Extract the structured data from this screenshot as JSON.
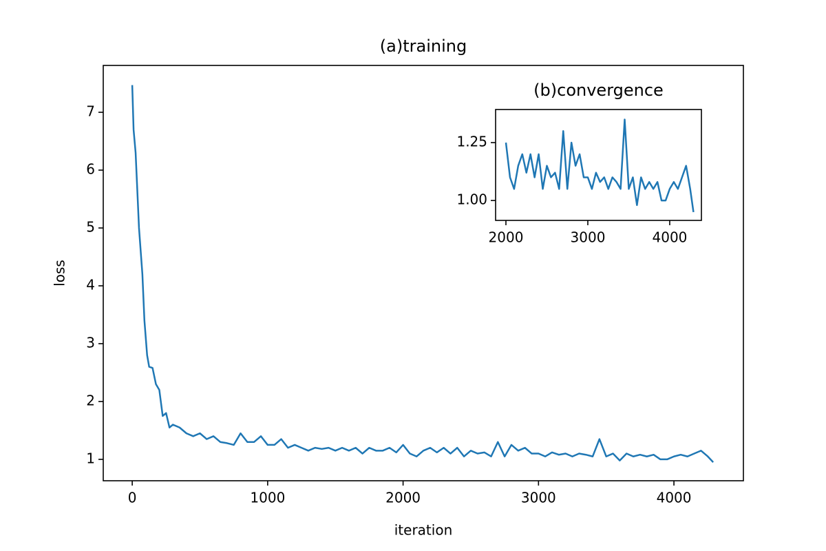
{
  "chart_data": [
    {
      "type": "line",
      "title": "(a)training",
      "x_label": "iteration",
      "y_label": "loss",
      "color": "#1f77b4",
      "x": [
        0,
        10,
        25,
        50,
        75,
        90,
        110,
        125,
        150,
        175,
        200,
        225,
        250,
        275,
        300,
        350,
        400,
        450,
        500,
        550,
        600,
        650,
        700,
        750,
        800,
        850,
        900,
        950,
        1000,
        1050,
        1100,
        1150,
        1200,
        1250,
        1300,
        1350,
        1400,
        1450,
        1500,
        1550,
        1600,
        1650,
        1700,
        1750,
        1800,
        1850,
        1900,
        1950,
        2000,
        2050,
        2100,
        2150,
        2200,
        2250,
        2300,
        2350,
        2400,
        2450,
        2500,
        2550,
        2600,
        2650,
        2700,
        2750,
        2800,
        2850,
        2900,
        2950,
        3000,
        3050,
        3100,
        3150,
        3200,
        3250,
        3300,
        3350,
        3400,
        3450,
        3500,
        3550,
        3600,
        3650,
        3700,
        3750,
        3800,
        3850,
        3900,
        3950,
        4000,
        4050,
        4100,
        4150,
        4200,
        4250,
        4290
      ],
      "values": [
        7.47,
        6.7,
        6.3,
        5.0,
        4.2,
        3.4,
        2.8,
        2.6,
        2.58,
        2.3,
        2.2,
        1.75,
        1.8,
        1.55,
        1.6,
        1.55,
        1.45,
        1.4,
        1.45,
        1.35,
        1.4,
        1.3,
        1.28,
        1.25,
        1.45,
        1.3,
        1.3,
        1.4,
        1.25,
        1.25,
        1.35,
        1.2,
        1.25,
        1.2,
        1.15,
        1.2,
        1.18,
        1.2,
        1.15,
        1.2,
        1.15,
        1.2,
        1.1,
        1.2,
        1.15,
        1.15,
        1.2,
        1.12,
        1.25,
        1.1,
        1.05,
        1.15,
        1.2,
        1.12,
        1.2,
        1.1,
        1.2,
        1.05,
        1.15,
        1.1,
        1.12,
        1.05,
        1.3,
        1.05,
        1.25,
        1.15,
        1.2,
        1.1,
        1.1,
        1.05,
        1.12,
        1.08,
        1.1,
        1.05,
        1.1,
        1.08,
        1.05,
        1.35,
        1.05,
        1.1,
        0.98,
        1.1,
        1.05,
        1.08,
        1.05,
        1.08,
        1.0,
        1.0,
        1.05,
        1.08,
        1.05,
        1.1,
        1.15,
        1.05,
        0.95
      ],
      "xlim": [
        -214,
        4513
      ],
      "ylim": [
        0.63,
        7.81
      ],
      "xticks": [
        0,
        1000,
        2000,
        3000,
        4000
      ],
      "yticks": [
        1,
        2,
        3,
        4,
        5,
        6,
        7
      ]
    },
    {
      "type": "line",
      "title": "(b)convergence",
      "color": "#1f77b4",
      "x": [
        2000,
        2050,
        2100,
        2150,
        2200,
        2250,
        2300,
        2350,
        2400,
        2450,
        2500,
        2550,
        2600,
        2650,
        2700,
        2750,
        2800,
        2850,
        2900,
        2950,
        3000,
        3050,
        3100,
        3150,
        3200,
        3250,
        3300,
        3350,
        3400,
        3450,
        3500,
        3550,
        3600,
        3650,
        3700,
        3750,
        3800,
        3850,
        3900,
        3950,
        4000,
        4050,
        4100,
        4150,
        4200,
        4250,
        4290
      ],
      "values": [
        1.25,
        1.1,
        1.05,
        1.15,
        1.2,
        1.12,
        1.2,
        1.1,
        1.2,
        1.05,
        1.15,
        1.1,
        1.12,
        1.05,
        1.3,
        1.05,
        1.25,
        1.15,
        1.2,
        1.1,
        1.1,
        1.05,
        1.12,
        1.08,
        1.1,
        1.05,
        1.1,
        1.08,
        1.05,
        1.35,
        1.05,
        1.1,
        0.98,
        1.1,
        1.05,
        1.08,
        1.05,
        1.08,
        1.0,
        1.0,
        1.05,
        1.08,
        1.05,
        1.1,
        1.15,
        1.05,
        0.95
      ],
      "xlim": [
        1874,
        4387
      ],
      "ylim": [
        0.914,
        1.393
      ],
      "xticks": [
        2000,
        3000,
        4000
      ],
      "yticks": [
        {
          "value": 1.0,
          "label": "1.00"
        },
        {
          "value": 1.25,
          "label": "1.25"
        }
      ]
    }
  ]
}
